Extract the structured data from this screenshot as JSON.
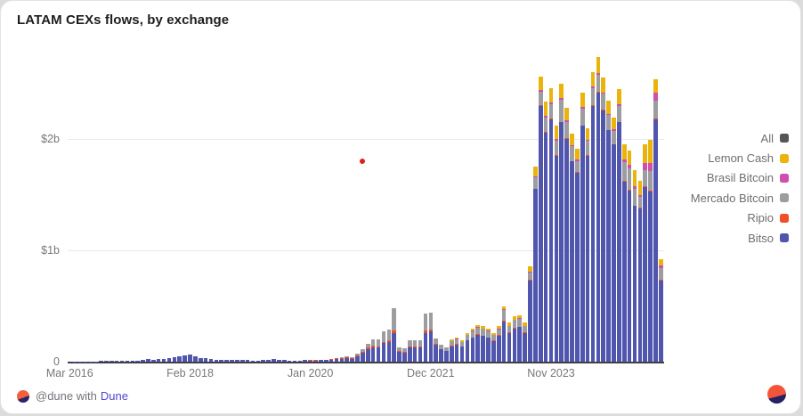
{
  "card": {
    "title": "LATAM CEXs flows, by exchange"
  },
  "footer": {
    "attribution_prefix": "@dune with",
    "attribution_link": "Dune"
  },
  "legend": [
    {
      "label": "All",
      "color": "#55555a"
    },
    {
      "label": "Lemon Cash",
      "color": "#eab40c"
    },
    {
      "label": "Brasil Bitcoin",
      "color": "#cf4eae"
    },
    {
      "label": "Mercado Bitcoin",
      "color": "#9d9da1"
    },
    {
      "label": "Ripio",
      "color": "#f04f27"
    },
    {
      "label": "Bitso",
      "color": "#5056ae"
    }
  ],
  "chart_data": {
    "type": "bar",
    "stacked": true,
    "title": "LATAM CEXs flows, by exchange",
    "unit": "USD billions per month",
    "ylim": [
      0,
      2.8
    ],
    "ytick_values": [
      0,
      1,
      2
    ],
    "ytick_labels": [
      "0",
      "$1b",
      "$2b"
    ],
    "xtick_labels": [
      "Mar 2016",
      "Feb 2018",
      "Jan 2020",
      "Dec 2021",
      "Nov 2023"
    ],
    "xtick_indices": [
      0,
      23,
      46,
      69,
      92
    ],
    "grid": "horizontal",
    "legend_position": "right",
    "series_order_bottom_to_top": [
      "Bitso",
      "Ripio",
      "Mercado Bitcoin",
      "Brasil Bitcoin",
      "Lemon Cash"
    ],
    "series_colors": {
      "Bitso": "#5056ae",
      "Ripio": "#f04f27",
      "Mercado Bitcoin": "#9d9da1",
      "Brasil Bitcoin": "#cf4eae",
      "Lemon Cash": "#eab40c"
    },
    "values_note": "each entry = [Bitso, Ripio, Mercado Bitcoin, Brasil Bitcoin, Lemon Cash] in $billions, monthly from Mar 2016",
    "values": [
      [
        0,
        0,
        0,
        0,
        0
      ],
      [
        0.002,
        0,
        0,
        0,
        0
      ],
      [
        0.002,
        0,
        0,
        0,
        0
      ],
      [
        0.003,
        0,
        0,
        0,
        0
      ],
      [
        0.003,
        0,
        0,
        0,
        0
      ],
      [
        0.004,
        0,
        0,
        0,
        0
      ],
      [
        0.005,
        0,
        0,
        0,
        0
      ],
      [
        0.005,
        0,
        0,
        0,
        0
      ],
      [
        0.006,
        0,
        0,
        0,
        0
      ],
      [
        0.008,
        0,
        0,
        0,
        0
      ],
      [
        0.008,
        0,
        0,
        0,
        0
      ],
      [
        0.01,
        0,
        0,
        0,
        0
      ],
      [
        0.01,
        0,
        0,
        0,
        0
      ],
      [
        0.012,
        0,
        0,
        0,
        0
      ],
      [
        0.018,
        0,
        0,
        0,
        0
      ],
      [
        0.028,
        0,
        0,
        0,
        0
      ],
      [
        0.02,
        0,
        0,
        0,
        0
      ],
      [
        0.024,
        0,
        0,
        0,
        0
      ],
      [
        0.028,
        0,
        0,
        0,
        0
      ],
      [
        0.03,
        0,
        0,
        0,
        0
      ],
      [
        0.042,
        0,
        0,
        0,
        0
      ],
      [
        0.05,
        0,
        0,
        0,
        0
      ],
      [
        0.055,
        0,
        0,
        0,
        0
      ],
      [
        0.065,
        0,
        0,
        0,
        0
      ],
      [
        0.048,
        0,
        0,
        0,
        0
      ],
      [
        0.035,
        0,
        0,
        0,
        0
      ],
      [
        0.03,
        0,
        0,
        0,
        0
      ],
      [
        0.025,
        0,
        0,
        0,
        0
      ],
      [
        0.02,
        0,
        0,
        0,
        0
      ],
      [
        0.015,
        0,
        0,
        0,
        0
      ],
      [
        0.014,
        0,
        0,
        0,
        0
      ],
      [
        0.014,
        0,
        0,
        0,
        0
      ],
      [
        0.015,
        0,
        0,
        0,
        0
      ],
      [
        0.018,
        0,
        0,
        0,
        0
      ],
      [
        0.014,
        0,
        0,
        0,
        0
      ],
      [
        0.01,
        0,
        0,
        0,
        0
      ],
      [
        0.01,
        0,
        0,
        0,
        0
      ],
      [
        0.013,
        0,
        0,
        0,
        0
      ],
      [
        0.018,
        0,
        0,
        0,
        0
      ],
      [
        0.022,
        0,
        0,
        0,
        0
      ],
      [
        0.018,
        0,
        0,
        0,
        0
      ],
      [
        0.014,
        0,
        0,
        0,
        0
      ],
      [
        0.01,
        0,
        0,
        0,
        0
      ],
      [
        0.01,
        0,
        0,
        0,
        0
      ],
      [
        0.01,
        0,
        0,
        0,
        0
      ],
      [
        0.013,
        0,
        0,
        0,
        0
      ],
      [
        0.012,
        0.002,
        0,
        0,
        0
      ],
      [
        0.012,
        0.003,
        0,
        0,
        0
      ],
      [
        0.015,
        0.004,
        0,
        0,
        0
      ],
      [
        0.015,
        0.004,
        0,
        0,
        0
      ],
      [
        0.018,
        0.005,
        0.002,
        0,
        0
      ],
      [
        0.025,
        0.006,
        0.004,
        0,
        0
      ],
      [
        0.028,
        0.007,
        0.005,
        0,
        0
      ],
      [
        0.03,
        0.008,
        0.007,
        0,
        0
      ],
      [
        0.026,
        0.007,
        0.007,
        0,
        0
      ],
      [
        0.05,
        0.008,
        0.012,
        0,
        0
      ],
      [
        0.08,
        0.01,
        0.02,
        0,
        0
      ],
      [
        0.115,
        0.015,
        0.03,
        0,
        0
      ],
      [
        0.13,
        0.015,
        0.055,
        0,
        0
      ],
      [
        0.125,
        0.015,
        0.06,
        0,
        0
      ],
      [
        0.165,
        0.015,
        0.09,
        0,
        0
      ],
      [
        0.175,
        0.015,
        0.1,
        0,
        0
      ],
      [
        0.26,
        0.02,
        0.2,
        0,
        0
      ],
      [
        0.085,
        0.01,
        0.035,
        0,
        0
      ],
      [
        0.08,
        0.008,
        0.032,
        0,
        0
      ],
      [
        0.125,
        0.01,
        0.055,
        0,
        0
      ],
      [
        0.125,
        0.01,
        0.055,
        0,
        0
      ],
      [
        0.13,
        0.01,
        0.05,
        0,
        0
      ],
      [
        0.26,
        0.02,
        0.15,
        0,
        0
      ],
      [
        0.27,
        0.02,
        0.15,
        0,
        0
      ],
      [
        0.15,
        0.008,
        0.052,
        0,
        0
      ],
      [
        0.11,
        0.006,
        0.034,
        0,
        0
      ],
      [
        0.095,
        0.005,
        0.03,
        0,
        0
      ],
      [
        0.14,
        0.005,
        0.04,
        0.002,
        0.013
      ],
      [
        0.155,
        0.005,
        0.042,
        0.003,
        0.015
      ],
      [
        0.135,
        0.004,
        0.036,
        0.003,
        0.012
      ],
      [
        0.19,
        0.004,
        0.045,
        0.004,
        0.017
      ],
      [
        0.215,
        0.005,
        0.055,
        0.005,
        0.02
      ],
      [
        0.24,
        0.005,
        0.06,
        0.005,
        0.02
      ],
      [
        0.23,
        0.005,
        0.06,
        0.005,
        0.02
      ],
      [
        0.215,
        0.005,
        0.055,
        0.005,
        0.02
      ],
      [
        0.185,
        0.004,
        0.048,
        0.004,
        0.019
      ],
      [
        0.235,
        0.004,
        0.05,
        0.005,
        0.026
      ],
      [
        0.36,
        0.005,
        0.1,
        0.006,
        0.029
      ],
      [
        0.26,
        0.004,
        0.055,
        0.005,
        0.026
      ],
      [
        0.3,
        0.004,
        0.07,
        0.006,
        0.03
      ],
      [
        0.31,
        0.004,
        0.07,
        0.006,
        0.03
      ],
      [
        0.26,
        0.004,
        0.055,
        0.005,
        0.026
      ],
      [
        0.73,
        0.004,
        0.07,
        0.006,
        0.05
      ],
      [
        1.55,
        0.005,
        0.1,
        0.01,
        0.085
      ],
      [
        2.3,
        0.005,
        0.12,
        0.015,
        0.12
      ],
      [
        2.06,
        0.005,
        0.13,
        0.015,
        0.13
      ],
      [
        2.18,
        0.005,
        0.13,
        0.015,
        0.13
      ],
      [
        1.85,
        0.005,
        0.13,
        0.015,
        0.12
      ],
      [
        2.15,
        0.005,
        0.2,
        0.015,
        0.13
      ],
      [
        2.0,
        0.005,
        0.15,
        0.012,
        0.11
      ],
      [
        1.8,
        0.004,
        0.13,
        0.012,
        0.1
      ],
      [
        1.7,
        0.004,
        0.1,
        0.01,
        0.1
      ],
      [
        2.12,
        0.004,
        0.15,
        0.012,
        0.13
      ],
      [
        1.85,
        0.004,
        0.13,
        0.012,
        0.1
      ],
      [
        2.3,
        0.005,
        0.15,
        0.015,
        0.13
      ],
      [
        2.42,
        0.005,
        0.15,
        0.015,
        0.15
      ],
      [
        2.26,
        0.005,
        0.14,
        0.015,
        0.13
      ],
      [
        2.08,
        0.004,
        0.13,
        0.012,
        0.12
      ],
      [
        1.95,
        0.004,
        0.12,
        0.012,
        0.11
      ],
      [
        2.15,
        0.004,
        0.14,
        0.015,
        0.14
      ],
      [
        1.62,
        0.004,
        0.17,
        0.025,
        0.13
      ],
      [
        1.54,
        0.004,
        0.19,
        0.035,
        0.13
      ],
      [
        1.4,
        0.004,
        0.15,
        0.02,
        0.15
      ],
      [
        1.38,
        0.003,
        0.1,
        0.01,
        0.13
      ],
      [
        1.57,
        0.004,
        0.15,
        0.06,
        0.17
      ],
      [
        1.53,
        0.004,
        0.18,
        0.07,
        0.21
      ],
      [
        2.18,
        0.004,
        0.16,
        0.07,
        0.12
      ],
      [
        0.73,
        0.003,
        0.11,
        0.02,
        0.06
      ]
    ],
    "annotations": [
      {
        "name": "red-dot-marker",
        "x_index": 56,
        "value": 1.8,
        "color": "#e02121"
      }
    ]
  }
}
